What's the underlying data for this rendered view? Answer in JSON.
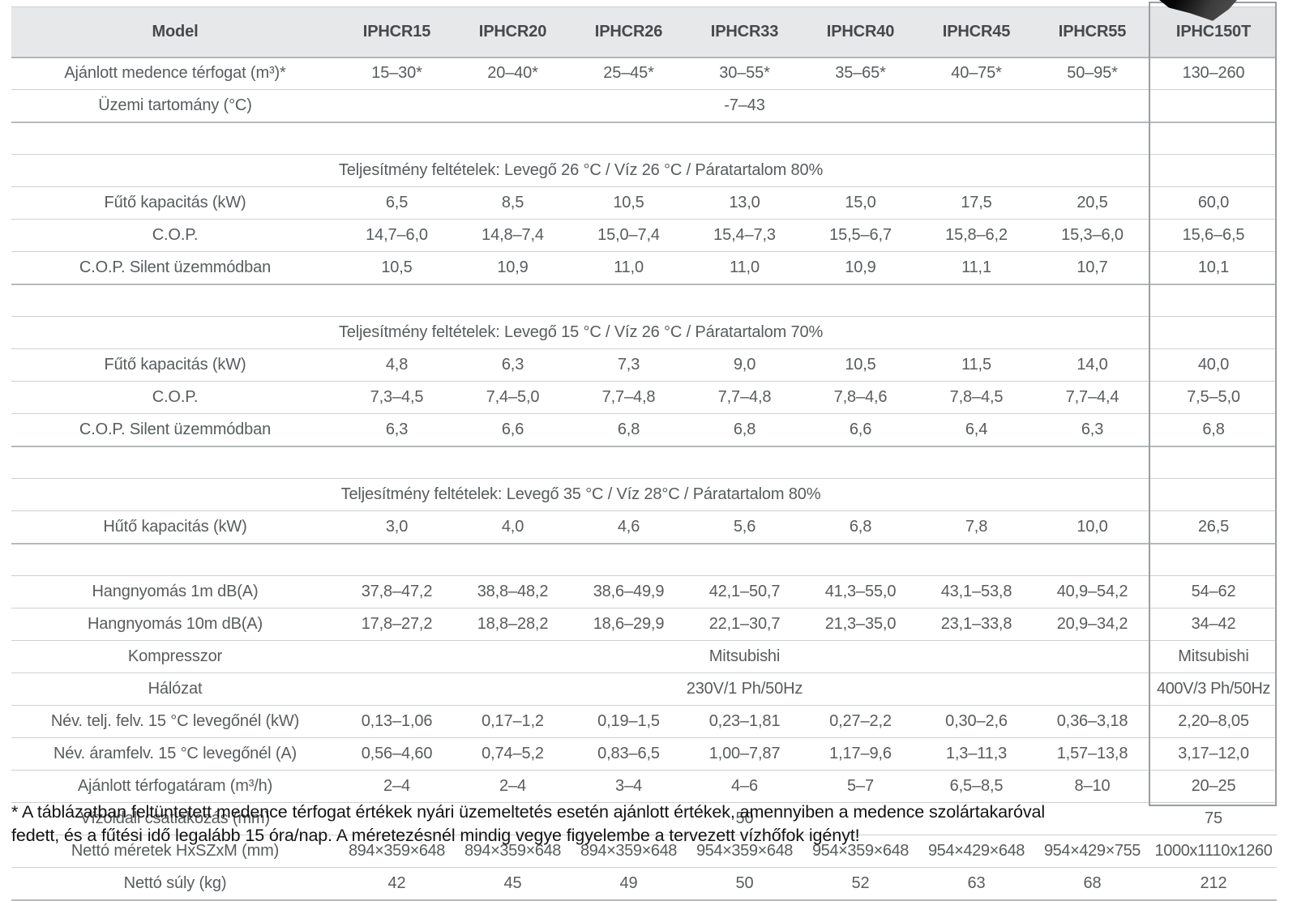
{
  "colors": {
    "heating_highlight": "#fbe9de",
    "cooling_highlight": "#dcebf5",
    "header_gray": "#e6e8e9",
    "label_column_gray": "#e2e4e6",
    "highlight_box_border": "#9a9ea1"
  },
  "table": {
    "header": {
      "model_label": "Model",
      "columns": [
        "IPHCR15",
        "IPHCR20",
        "IPHCR26",
        "IPHCR33",
        "IPHCR40",
        "IPHCR45",
        "IPHCR55",
        "IPHC150T"
      ]
    },
    "rows": [
      {
        "kind": "data",
        "tint": "white",
        "label": "Ajánlott medence térfogat (m³)*",
        "values": [
          "15–30*",
          "20–40*",
          "25–45*",
          "30–55*",
          "35–65*",
          "40–75*",
          "50–95*"
        ],
        "last": "130–260"
      },
      {
        "kind": "data",
        "tint": "white",
        "label": "Üzemi tartomány (°C)",
        "span": "-7–43",
        "last": ""
      },
      {
        "kind": "gap"
      },
      {
        "kind": "section",
        "label": "Teljesítmény feltételek: Levegő 26 °C / Víz 26 °C / Páratartalom 80%"
      },
      {
        "kind": "data",
        "tint": "orange",
        "label": "Fűtő kapacitás (kW)",
        "values": [
          "6,5",
          "8,5",
          "10,5",
          "13,0",
          "15,0",
          "17,5",
          "20,5"
        ],
        "last": "60,0"
      },
      {
        "kind": "data",
        "tint": "orange",
        "label": "C.O.P.",
        "values": [
          "14,7–6,0",
          "14,8–7,4",
          "15,0–7,4",
          "15,4–7,3",
          "15,5–6,7",
          "15,8–6,2",
          "15,3–6,0"
        ],
        "last": "15,6–6,5"
      },
      {
        "kind": "data",
        "tint": "orange",
        "label": "C.O.P. Silent üzemmódban",
        "values": [
          "10,5",
          "10,9",
          "11,0",
          "11,0",
          "10,9",
          "11,1",
          "10,7"
        ],
        "last": "10,1"
      },
      {
        "kind": "gap"
      },
      {
        "kind": "section",
        "label": "Teljesítmény feltételek: Levegő 15 °C / Víz 26 °C / Páratartalom 70%"
      },
      {
        "kind": "data",
        "tint": "orange",
        "label": "Fűtő kapacitás (kW)",
        "values": [
          "4,8",
          "6,3",
          "7,3",
          "9,0",
          "10,5",
          "11,5",
          "14,0"
        ],
        "last": "40,0"
      },
      {
        "kind": "data",
        "tint": "orange",
        "label": "C.O.P.",
        "values": [
          "7,3–4,5",
          "7,4–5,0",
          "7,7–4,8",
          "7,7–4,8",
          "7,8–4,6",
          "7,8–4,5",
          "7,7–4,4"
        ],
        "last": "7,5–5,0"
      },
      {
        "kind": "data",
        "tint": "orange",
        "label": "C.O.P. Silent üzemmódban",
        "values": [
          "6,3",
          "6,6",
          "6,8",
          "6,8",
          "6,6",
          "6,4",
          "6,3"
        ],
        "last": "6,8"
      },
      {
        "kind": "gap"
      },
      {
        "kind": "section",
        "label": "Teljesítmény feltételek: Levegő 35 °C / Víz 28°C / Páratartalom 80%"
      },
      {
        "kind": "data",
        "tint": "blue",
        "label": "Hűtő kapacitás (kW)",
        "values": [
          "3,0",
          "4,0",
          "4,6",
          "5,6",
          "6,8",
          "7,8",
          "10,0"
        ],
        "last": "26,5"
      },
      {
        "kind": "gap"
      },
      {
        "kind": "data",
        "tint": "white",
        "label": "Hangnyomás 1m dB(A)",
        "values": [
          "37,8–47,2",
          "38,8–48,2",
          "38,6–49,9",
          "42,1–50,7",
          "41,3–55,0",
          "43,1–53,8",
          "40,9–54,2"
        ],
        "last": "54–62"
      },
      {
        "kind": "data",
        "tint": "white",
        "label": "Hangnyomás 10m dB(A)",
        "values": [
          "17,8–27,2",
          "18,8–28,2",
          "18,6–29,9",
          "22,1–30,7",
          "21,3–35,0",
          "23,1–33,8",
          "20,9–34,2"
        ],
        "last": "34–42"
      },
      {
        "kind": "data",
        "tint": "white",
        "label": "Kompresszor",
        "span": "Mitsubishi",
        "last": "Mitsubishi"
      },
      {
        "kind": "data",
        "tint": "white",
        "label": "Hálózat",
        "span": "230V/1 Ph/50Hz",
        "last": "400V/3 Ph/50Hz",
        "last_class": "mid"
      },
      {
        "kind": "data",
        "tint": "white",
        "label": "Név. telj. felv. 15 °C levegőnél (kW)",
        "values": [
          "0,13–1,06",
          "0,17–1,2",
          "0,19–1,5",
          "0,23–1,81",
          "0,27–2,2",
          "0,30–2,6",
          "0,36–3,18"
        ],
        "last": "2,20–8,05",
        "last_class": "big"
      },
      {
        "kind": "data",
        "tint": "white",
        "label": "Név. áramfelv. 15 °C levegőnél (A)",
        "values": [
          "0,56–4,60",
          "0,74–5,2",
          "0,83–6,5",
          "1,00–7,87",
          "1,17–9,6",
          "1,3–11,3",
          "1,57–13,8"
        ],
        "last": "3,17–12,0",
        "last_class": "big"
      },
      {
        "kind": "data",
        "tint": "white",
        "label": "Ajánlott térfogatáram (m³/h)",
        "values": [
          "2–4",
          "2–4",
          "3–4",
          "4–6",
          "5–7",
          "6,5–8,5",
          "8–10"
        ],
        "last": "20–25"
      },
      {
        "kind": "data",
        "tint": "white",
        "label": "Vízoldali csatlakozás (mm)",
        "span": "50",
        "last": "75"
      },
      {
        "kind": "data",
        "tint": "white",
        "label": "Nettó méretek HxSZxM (mm)",
        "values": [
          "894×359×648",
          "894×359×648",
          "894×359×648",
          "954×359×648",
          "954×359×648",
          "954×429×648",
          "954×429×755"
        ],
        "values_class": "small",
        "last": "1000x1110x1260",
        "last_class": "small"
      },
      {
        "kind": "data",
        "tint": "white",
        "label": "Nettó súly (kg)",
        "values": [
          "42",
          "45",
          "49",
          "50",
          "52",
          "63",
          "68"
        ],
        "last": "212"
      }
    ]
  },
  "footnote": {
    "line1": "* A táblázatban feltüntetett medence térfogat értékek nyári üzemeltetés esetén ajánlott értékek, amennyiben a medence szolártakaróval",
    "line2": "fedett, és a fűtési idő legalább 15 óra/nap. A méretezésnél mindig vegye figyelembe a tervezett vízhőfok igényt!"
  }
}
